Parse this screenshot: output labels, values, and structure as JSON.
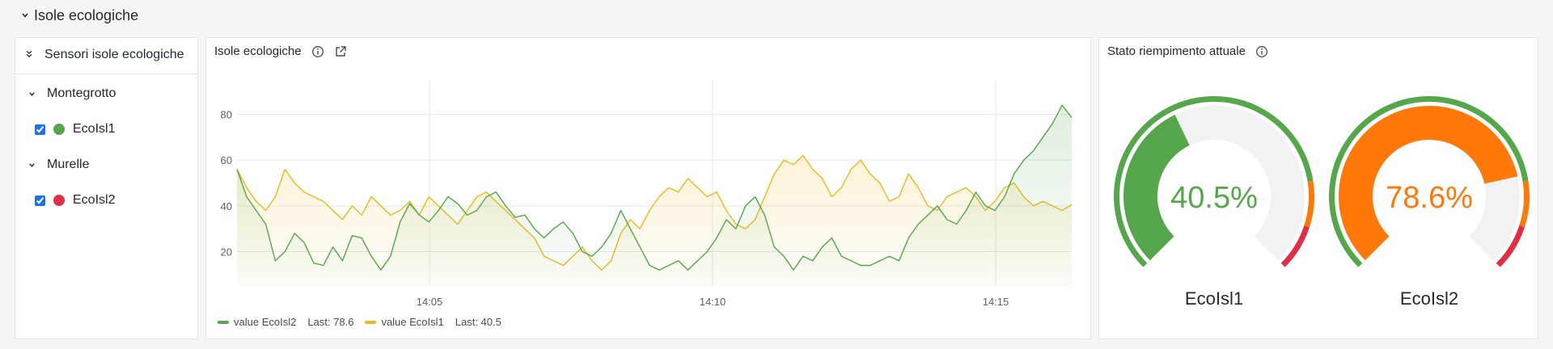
{
  "row": {
    "title": "Isole ecologiche"
  },
  "sidebar": {
    "title": "Sensori isole ecologiche",
    "groups": [
      {
        "label": "Montegrotto",
        "items": [
          {
            "label": "EcoIsl1",
            "color": "#56a64b",
            "checked": true
          }
        ]
      },
      {
        "label": "Murelle",
        "items": [
          {
            "label": "EcoIsl2",
            "color": "#e02f44",
            "checked": true
          }
        ]
      }
    ]
  },
  "chart_panel": {
    "title": "Isole ecologiche",
    "legend": [
      {
        "name": "value EcoIsl2",
        "last_label": "Last: 78.6",
        "color": "#56a64b"
      },
      {
        "name": "value EcoIsl1",
        "last_label": "Last: 40.5",
        "color": "#e8b920"
      }
    ]
  },
  "chart_data": {
    "type": "line",
    "xlabel": "",
    "ylabel": "",
    "x_ticks": [
      "14:05",
      "14:10",
      "14:15"
    ],
    "y_ticks": [
      20,
      40,
      60,
      80
    ],
    "ylim": [
      5,
      95
    ],
    "grid": true,
    "series": [
      {
        "name": "value EcoIsl2",
        "color": "#56a64b",
        "values": [
          56,
          44,
          38,
          32,
          16,
          20,
          28,
          24,
          15,
          14,
          22,
          16,
          27,
          26,
          18,
          12,
          18,
          33,
          41,
          36,
          33,
          38,
          44,
          41,
          36,
          38,
          44,
          46,
          40,
          35,
          36,
          30,
          26,
          30,
          33,
          28,
          20,
          18,
          22,
          28,
          38,
          30,
          22,
          14,
          12,
          14,
          16,
          12,
          16,
          20,
          26,
          34,
          30,
          40,
          44,
          36,
          22,
          18,
          12,
          18,
          16,
          22,
          26,
          18,
          16,
          14,
          14,
          16,
          18,
          16,
          26,
          32,
          36,
          40,
          34,
          32,
          38,
          46,
          40,
          38,
          44,
          54,
          60,
          64,
          70,
          76,
          84,
          78.6
        ]
      },
      {
        "name": "value EcoIsl1",
        "color": "#e8b920",
        "values": [
          56,
          48,
          42,
          38,
          44,
          56,
          50,
          46,
          44,
          42,
          38,
          34,
          40,
          36,
          44,
          40,
          36,
          38,
          42,
          36,
          44,
          40,
          36,
          32,
          38,
          44,
          46,
          42,
          38,
          34,
          30,
          26,
          18,
          16,
          14,
          18,
          22,
          16,
          12,
          16,
          28,
          34,
          30,
          38,
          44,
          48,
          46,
          52,
          48,
          44,
          46,
          38,
          32,
          30,
          34,
          44,
          54,
          60,
          58,
          62,
          56,
          52,
          44,
          48,
          56,
          60,
          54,
          50,
          42,
          44,
          54,
          48,
          40,
          38,
          44,
          46,
          48,
          44,
          38,
          42,
          48,
          50,
          44,
          40,
          42,
          40,
          38,
          40.5
        ]
      }
    ]
  },
  "gauge_panel": {
    "title": "Stato riempimento attuale",
    "gauges": [
      {
        "name": "EcoIsl1",
        "value": 40.5,
        "display": "40.5%",
        "color": "#56a64b"
      },
      {
        "name": "EcoIsl2",
        "value": 78.6,
        "display": "78.6%",
        "color": "#ff780a"
      }
    ],
    "thresholds": [
      {
        "from": 0,
        "to": 80,
        "color": "#56a64b"
      },
      {
        "from": 80,
        "to": 90,
        "color": "#ff780a"
      },
      {
        "from": 90,
        "to": 100,
        "color": "#e02f44"
      }
    ]
  }
}
